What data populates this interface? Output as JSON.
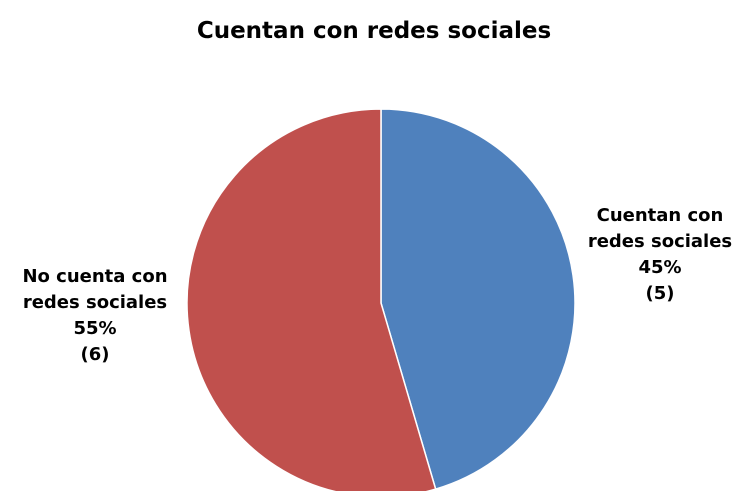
{
  "chart_data": {
    "type": "pie",
    "title": "Cuentan con redes sociales",
    "slices": [
      {
        "name": "Cuentan con redes sociales",
        "label_lines": [
          "Cuentan con",
          "redes sociales"
        ],
        "percent_label": "45%",
        "count_label": "(5)",
        "value": 5,
        "color": "#4F81BD"
      },
      {
        "name": "No cuenta con redes sociales",
        "label_lines": [
          "No cuenta con",
          "redes sociales"
        ],
        "percent_label": "55%",
        "count_label": "(6)",
        "value": 6,
        "color": "#C0504D"
      }
    ],
    "legend": "none"
  }
}
